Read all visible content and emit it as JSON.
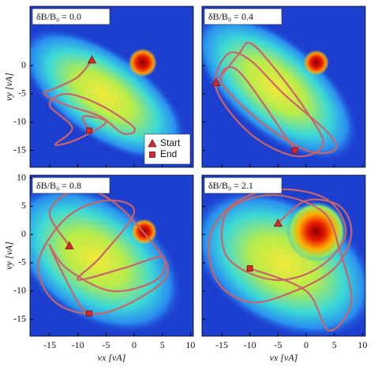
{
  "chart_data": [
    {
      "type": "line",
      "title": "δB/B₀ = 0.0",
      "ylabel": "vy [vA]",
      "xlim": [
        -18.5,
        10.5
      ],
      "ylim": [
        -18,
        10.5
      ],
      "xticks": [
        -15,
        -10,
        -5,
        0,
        5,
        10
      ],
      "yticks": [
        0,
        -5,
        -10,
        -15
      ],
      "legend": "lower right",
      "series": [
        {
          "color": "#c8646a",
          "x": [
            -7.5,
            -10,
            -14,
            -16,
            -12,
            -6,
            -2,
            0,
            -6,
            -12,
            -15,
            -11,
            -14,
            -10,
            -5,
            -9,
            -8
          ],
          "y": [
            1,
            -2,
            -4,
            -5,
            -7,
            -9,
            -12,
            -11,
            -7,
            -5,
            -7,
            -11,
            -14,
            -13,
            -10,
            -9,
            -11.5
          ]
        },
        {
          "name": "Start",
          "marker": "triangle",
          "color": "#d42a2a",
          "x": [
            -7.5
          ],
          "y": [
            1
          ]
        },
        {
          "name": "End",
          "marker": "square",
          "color": "#d42a2a",
          "x": [
            -8
          ],
          "y": [
            -11.5
          ]
        }
      ]
    },
    {
      "type": "line",
      "title": "δB/B₀ = 0.4",
      "xlim": [
        -18.5,
        10.5
      ],
      "ylim": [
        -18,
        10.5
      ],
      "xticks": [
        -15,
        -10,
        -5,
        0,
        5,
        10
      ],
      "yticks": [
        0,
        -5,
        -10,
        -15
      ],
      "series": [
        {
          "color": "#c8646a",
          "x": [
            -16,
            -12,
            -10,
            -6,
            0,
            3,
            -2,
            -10,
            -16,
            -14,
            -10,
            -4,
            4,
            5,
            0,
            -8,
            -15,
            -12,
            -2
          ],
          "y": [
            -3,
            2,
            4,
            0,
            -8,
            -14,
            -16,
            -12,
            -4,
            2,
            1,
            -5,
            -12,
            -15,
            -15,
            -10,
            -3,
            -1,
            -15
          ]
        },
        {
          "marker": "triangle",
          "color": "#d42a2a",
          "x": [
            -16
          ],
          "y": [
            -3
          ]
        },
        {
          "marker": "square",
          "color": "#d42a2a",
          "x": [
            -2
          ],
          "y": [
            -15
          ]
        }
      ]
    },
    {
      "type": "line",
      "title": "δB/B₀ = 0.8",
      "xlabel": "vx [vA]",
      "ylabel": "vy [vA]",
      "xlim": [
        -18.5,
        10.5
      ],
      "ylim": [
        -18,
        10.5
      ],
      "xticks": [
        -15,
        -10,
        -5,
        0,
        5,
        10
      ],
      "yticks": [
        10,
        5,
        0,
        -5,
        -10,
        -15
      ],
      "series": [
        {
          "color": "#c8646a",
          "x": [
            -11.5,
            -15,
            -10,
            -4,
            2,
            6,
            3,
            -6,
            -14,
            -17,
            -12,
            -5,
            0,
            -6,
            -10,
            -2,
            5,
            4,
            -4,
            -12,
            -15,
            -10,
            -8
          ],
          "y": [
            -2,
            4,
            8,
            6,
            0,
            -6,
            -10,
            -14,
            -12,
            -5,
            3,
            6,
            4,
            -4,
            -8,
            -6,
            -4,
            -8,
            -10,
            -6,
            -2,
            -12,
            -14
          ]
        },
        {
          "marker": "triangle",
          "color": "#d42a2a",
          "x": [
            -11.5
          ],
          "y": [
            -2
          ]
        },
        {
          "marker": "square",
          "color": "#d42a2a",
          "x": [
            -8
          ],
          "y": [
            -14
          ]
        }
      ]
    },
    {
      "type": "line",
      "title": "δB/B₀ = 2.1",
      "xlabel": "vx [vA]",
      "xlim": [
        -18.5,
        10.5
      ],
      "ylim": [
        -18,
        10.5
      ],
      "xticks": [
        -15,
        -10,
        -5,
        0,
        5,
        10
      ],
      "yticks": [
        10,
        5,
        0,
        -5,
        -10,
        -15
      ],
      "series": [
        {
          "color": "#c8646a",
          "x": [
            -5,
            0,
            6,
            8,
            5,
            -2,
            -10,
            -16,
            -17,
            -12,
            -4,
            4,
            7,
            2,
            -6,
            -14,
            -14,
            -6,
            3,
            6,
            8,
            4,
            0,
            -10
          ],
          "y": [
            2,
            6,
            5,
            0,
            -6,
            -10,
            -12,
            -8,
            0,
            6,
            8,
            6,
            0,
            -6,
            -8,
            -4,
            4,
            7,
            4,
            -3,
            -12,
            -17,
            -10,
            -6
          ]
        },
        {
          "marker": "triangle",
          "color": "#d42a2a",
          "x": [
            -5
          ],
          "y": [
            2
          ]
        },
        {
          "marker": "square",
          "color": "#d42a2a",
          "x": [
            -10
          ],
          "y": [
            -6
          ]
        }
      ]
    }
  ]
}
